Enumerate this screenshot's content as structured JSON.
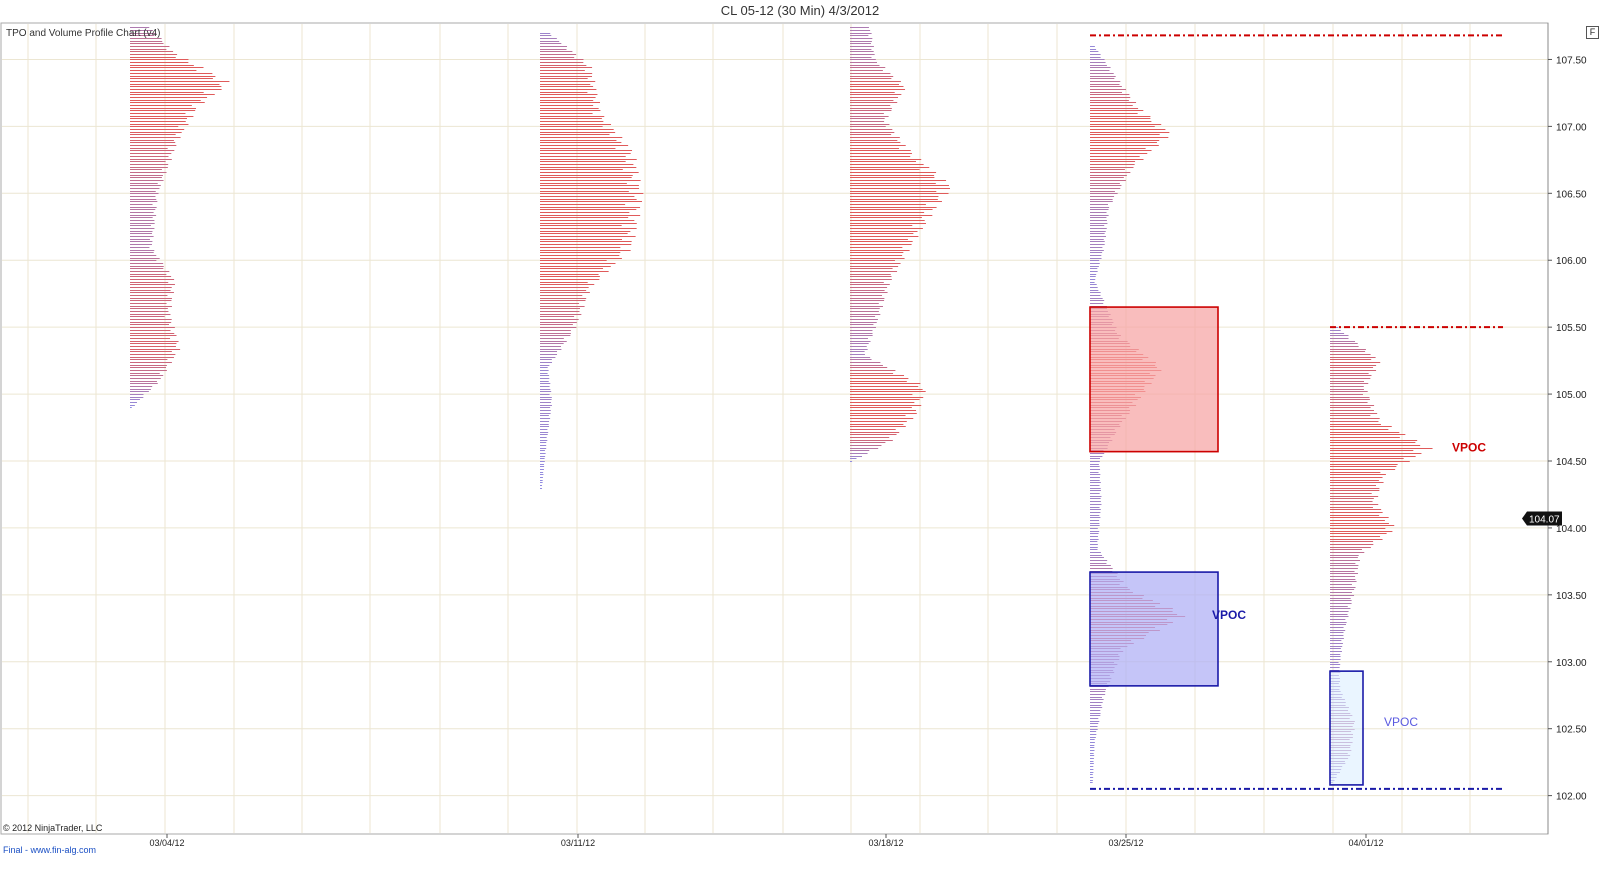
{
  "window": {
    "title": "CL 05-12 (30 Min)  4/3/2012",
    "corner_button": "F"
  },
  "indicator_label": "TPO and Volume Profile Chart (v4)",
  "copyright": "© 2012 NinjaTrader, LLC",
  "footer_link": "Final - www.fin-alg.com",
  "colors": {
    "background": "#ffffff",
    "grid": "#ece6d2",
    "profile_hi": "#e05a5a",
    "profile_lo": "#8e8ee6",
    "red_accent": "#cc0000",
    "blue_accent": "#1a1aa8",
    "red_box_fill": "#f7a3a3",
    "blue_box_fill": "#aeaef5",
    "light_box_fill": "#dcefff"
  },
  "chart_data": {
    "type": "bar",
    "subtype": "market-profile",
    "title": "CL 05-12 (30 Min)  4/3/2012",
    "xlabel": "",
    "ylabel": "",
    "ylim": [
      101.9,
      107.75
    ],
    "y_ticks": [
      "102.00",
      "102.50",
      "103.00",
      "103.50",
      "104.00",
      "104.50",
      "105.00",
      "105.50",
      "106.00",
      "106.50",
      "107.00",
      "107.50"
    ],
    "x_ticks": [
      "03/04/12",
      "03/11/12",
      "03/18/12",
      "03/25/12",
      "04/01/12"
    ],
    "grid": true,
    "last_price": "104.07",
    "tick_size": 0.02,
    "bar_units": "relative volume",
    "profiles": [
      {
        "week": "03/04/12",
        "low": 104.9,
        "high": 107.75,
        "nodes": [
          [
            104.9,
            2
          ],
          [
            105.1,
            30
          ],
          [
            105.35,
            50
          ],
          [
            105.6,
            40
          ],
          [
            105.85,
            45
          ],
          [
            106.1,
            22
          ],
          [
            106.5,
            28
          ],
          [
            106.9,
            48
          ],
          [
            107.15,
            68
          ],
          [
            107.33,
            100
          ],
          [
            107.55,
            45
          ],
          [
            107.75,
            20
          ]
        ]
      },
      {
        "week": "03/11/12",
        "low": 104.3,
        "high": 107.7,
        "nodes": [
          [
            104.3,
            2
          ],
          [
            104.6,
            6
          ],
          [
            104.95,
            12
          ],
          [
            105.2,
            8
          ],
          [
            105.5,
            35
          ],
          [
            105.8,
            50
          ],
          [
            106.1,
            90
          ],
          [
            106.48,
            100
          ],
          [
            106.8,
            92
          ],
          [
            107.1,
            60
          ],
          [
            107.45,
            50
          ],
          [
            107.7,
            10
          ]
        ]
      },
      {
        "week": "03/18/12",
        "low": 104.5,
        "high": 107.75,
        "nodes": [
          [
            104.5,
            2
          ],
          [
            104.65,
            40
          ],
          [
            104.85,
            65
          ],
          [
            105.05,
            75
          ],
          [
            105.3,
            15
          ],
          [
            105.5,
            25
          ],
          [
            105.85,
            40
          ],
          [
            106.05,
            55
          ],
          [
            106.35,
            80
          ],
          [
            106.55,
            100
          ],
          [
            106.85,
            55
          ],
          [
            107.05,
            35
          ],
          [
            107.3,
            55
          ],
          [
            107.5,
            25
          ],
          [
            107.75,
            20
          ]
        ]
      },
      {
        "week": "03/25/12",
        "low": 102.1,
        "high": 107.6,
        "nodes": [
          [
            102.1,
            3
          ],
          [
            102.4,
            5
          ],
          [
            102.75,
            15
          ],
          [
            103.1,
            35
          ],
          [
            103.35,
            100
          ],
          [
            103.55,
            40
          ],
          [
            103.85,
            8
          ],
          [
            104.2,
            12
          ],
          [
            104.5,
            10
          ],
          [
            104.75,
            30
          ],
          [
            105.0,
            55
          ],
          [
            105.2,
            75
          ],
          [
            105.45,
            30
          ],
          [
            105.62,
            20
          ],
          [
            105.85,
            5
          ],
          [
            106.1,
            15
          ],
          [
            106.4,
            20
          ],
          [
            106.7,
            45
          ],
          [
            106.95,
            85
          ],
          [
            107.15,
            50
          ],
          [
            107.4,
            25
          ],
          [
            107.6,
            5
          ]
        ]
      },
      {
        "week": "04/01/12",
        "low": 102.1,
        "high": 105.5,
        "nodes": [
          [
            102.1,
            3
          ],
          [
            102.3,
            20
          ],
          [
            102.55,
            25
          ],
          [
            102.8,
            10
          ],
          [
            103.0,
            10
          ],
          [
            103.25,
            15
          ],
          [
            103.55,
            25
          ],
          [
            103.8,
            30
          ],
          [
            104.0,
            65
          ],
          [
            104.2,
            45
          ],
          [
            104.4,
            55
          ],
          [
            104.6,
            100
          ],
          [
            104.8,
            50
          ],
          [
            105.05,
            35
          ],
          [
            105.25,
            50
          ],
          [
            105.5,
            8
          ]
        ]
      }
    ],
    "annotations": [
      {
        "kind": "box",
        "week": "03/25/12",
        "y0": 104.57,
        "y1": 105.65,
        "color": "red"
      },
      {
        "kind": "box",
        "week": "03/25/12",
        "y0": 102.82,
        "y1": 103.67,
        "color": "blue"
      },
      {
        "kind": "box",
        "week": "04/01/12",
        "y0": 102.08,
        "y1": 102.93,
        "color": "light"
      },
      {
        "kind": "label",
        "text": "VPOC",
        "y": 104.6,
        "color": "red",
        "bold": true
      },
      {
        "kind": "label",
        "text": "VPOC",
        "y": 103.35,
        "color": "blue",
        "bold": true
      },
      {
        "kind": "label",
        "text": "VPOC",
        "y": 102.55,
        "color": "lightblue",
        "bold": false
      },
      {
        "kind": "hline",
        "y": 107.68,
        "color": "red",
        "style": "dash-dot",
        "from_week": "03/25/12"
      },
      {
        "kind": "hline",
        "y": 105.5,
        "color": "red",
        "style": "dash-dot",
        "from_week": "04/01/12"
      },
      {
        "kind": "hline",
        "y": 102.05,
        "color": "blue",
        "style": "dash-dot",
        "from_week": "03/25/12"
      }
    ]
  }
}
